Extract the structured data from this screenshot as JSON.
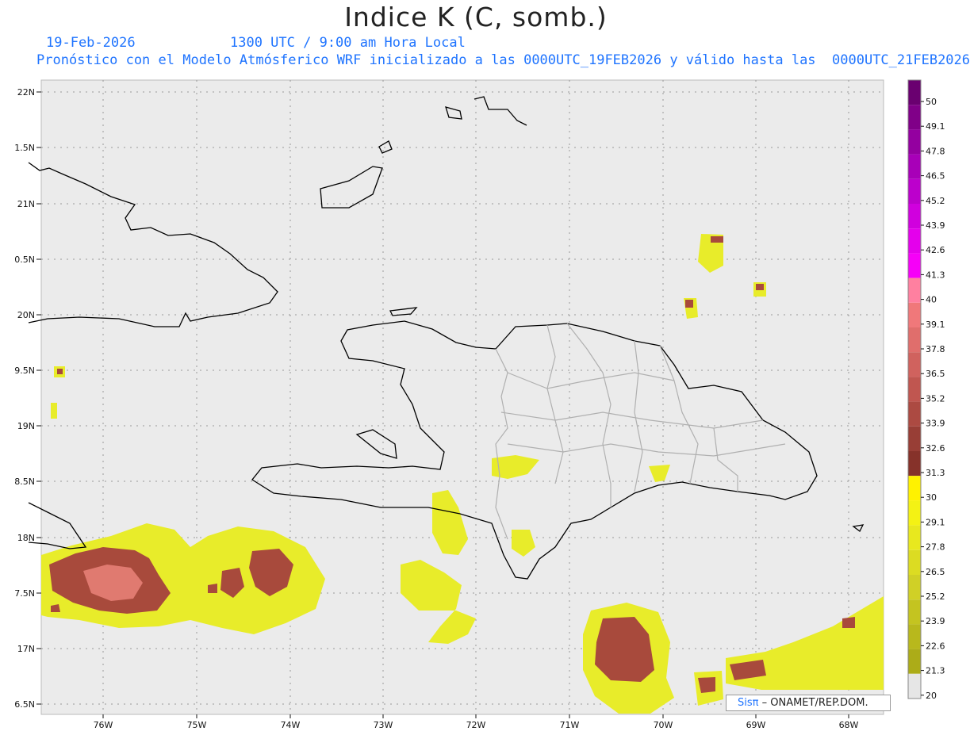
{
  "title": "Indice K (C, somb.)",
  "date": "19-Feb-2026",
  "time": "1300 UTC / 9:00 am Hora Local",
  "forecast": "Pronóstico con el Modelo Atmósferico WRF inicializado a las 0000UTC_19FEB2026 y válido hasta las  0000UTC_21FEB2026",
  "credit": {
    "brand": "Sisπ",
    "org": " – ONAMET/REP.DOM."
  },
  "lon_labels": [
    "76W",
    "75W",
    "74W",
    "73W",
    "72W",
    "71W",
    "70W",
    "69W",
    "68W"
  ],
  "lat_labels": [
    "22N",
    "1.5N",
    "21N",
    "0.5N",
    "20N",
    "9.5N",
    "19N",
    "8.5N",
    "18N",
    "7.5N",
    "17N",
    "6.5N"
  ],
  "legend": {
    "labels": [
      "50",
      "49.1",
      "47.8",
      "46.5",
      "45.2",
      "43.9",
      "42.6",
      "41.3",
      "40",
      "39.1",
      "37.8",
      "36.5",
      "35.2",
      "33.9",
      "32.6",
      "31.3",
      "30",
      "29.1",
      "27.8",
      "26.5",
      "25.2",
      "23.9",
      "22.6",
      "21.3",
      "20"
    ],
    "colors": [
      "#6a0070",
      "#800088",
      "#9400a0",
      "#a800b8",
      "#bc00cc",
      "#d000de",
      "#e400ec",
      "#f600f8",
      "#ff80a0",
      "#f0787a",
      "#e06e6c",
      "#d0625e",
      "#c05650",
      "#ac4a42",
      "#983e36",
      "#86322a",
      "#fff200",
      "#f4f214",
      "#e8e81e",
      "#dcdc22",
      "#d0d026",
      "#c4c420",
      "#b8b81c",
      "#acac18",
      "#e6e6e6"
    ]
  },
  "colors": {
    "yellow": "#e8ec2a",
    "brown": "#a84a3c",
    "pink": "#e07a70",
    "border": "#b0b0b0",
    "coast": "#000000"
  }
}
